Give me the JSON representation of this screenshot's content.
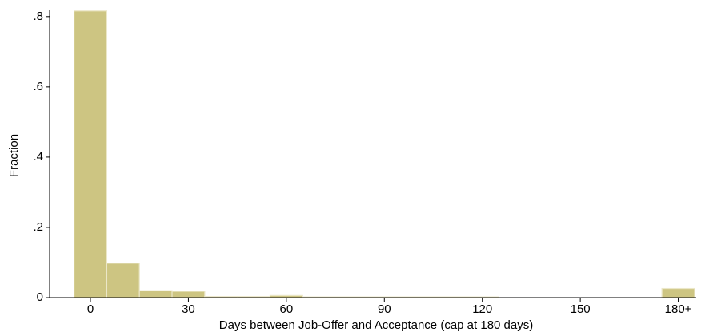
{
  "chart_data": {
    "type": "histogram",
    "xlabel": "Days between Job-Offer and Acceptance (cap at 180 days)",
    "ylabel": "Fraction",
    "bins": [
      -5,
      5,
      15,
      25,
      35,
      45,
      55,
      65,
      75,
      85,
      95,
      105,
      115,
      125,
      135,
      145,
      155,
      165,
      175,
      185
    ],
    "values": [
      0.816,
      0.098,
      0.02,
      0.018,
      0.003,
      0.003,
      0.006,
      0.002,
      0.002,
      0.002,
      0.002,
      0.002,
      0.002,
      0,
      0,
      0,
      0,
      0,
      0.026
    ],
    "color": "#cdc582",
    "xlim": [
      -12.5,
      185.5
    ],
    "xticks": [
      0,
      30,
      60,
      90,
      120,
      150,
      {
        "value": 180,
        "label": "180+"
      }
    ],
    "ylim": [
      0,
      0.82
    ],
    "yticks": [
      0,
      {
        "value": 0.2,
        "label": ".2"
      },
      {
        "value": 0.4,
        "label": ".4"
      },
      {
        "value": 0.6,
        "label": ".6"
      },
      {
        "value": 0.8,
        "label": ".8"
      }
    ]
  }
}
